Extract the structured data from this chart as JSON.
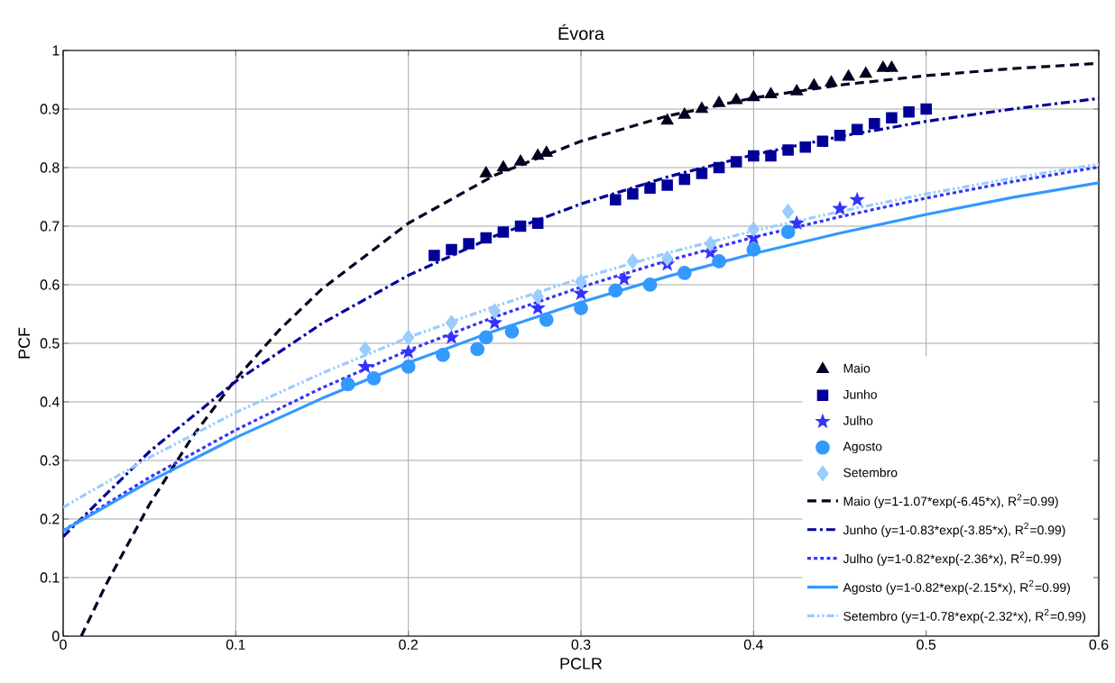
{
  "chart_data": {
    "type": "scatter",
    "title": "Évora",
    "xlabel": "PCLR",
    "ylabel": "PCF",
    "xlim": [
      0,
      0.6
    ],
    "ylim": [
      0,
      1
    ],
    "xticks": [
      0,
      0.1,
      0.2,
      0.3,
      0.4,
      0.5,
      0.6
    ],
    "yticks": [
      0,
      0.1,
      0.2,
      0.3,
      0.4,
      0.5,
      0.6,
      0.7,
      0.8,
      0.9,
      1
    ],
    "grid": true,
    "legend": "bottom right",
    "series": [
      {
        "name": "Maio",
        "color": "#000020",
        "marker": "triangle",
        "x": [
          0.245,
          0.255,
          0.265,
          0.275,
          0.28,
          0.35,
          0.36,
          0.37,
          0.38,
          0.39,
          0.4,
          0.41,
          0.425,
          0.435,
          0.445,
          0.455,
          0.465,
          0.475,
          0.48
        ],
        "values": [
          0.79,
          0.8,
          0.81,
          0.82,
          0.825,
          0.88,
          0.89,
          0.9,
          0.91,
          0.915,
          0.92,
          0.925,
          0.93,
          0.94,
          0.945,
          0.955,
          0.96,
          0.97,
          0.97
        ]
      },
      {
        "name": "Junho",
        "color": "#000099",
        "marker": "square",
        "x": [
          0.215,
          0.225,
          0.235,
          0.245,
          0.255,
          0.265,
          0.275,
          0.32,
          0.33,
          0.34,
          0.35,
          0.36,
          0.37,
          0.38,
          0.39,
          0.4,
          0.41,
          0.42,
          0.43,
          0.44,
          0.45,
          0.46,
          0.47,
          0.48,
          0.49,
          0.5
        ],
        "values": [
          0.65,
          0.66,
          0.67,
          0.68,
          0.69,
          0.7,
          0.705,
          0.745,
          0.755,
          0.765,
          0.77,
          0.78,
          0.79,
          0.8,
          0.81,
          0.82,
          0.82,
          0.83,
          0.835,
          0.845,
          0.855,
          0.865,
          0.875,
          0.885,
          0.895,
          0.9
        ]
      },
      {
        "name": "Julho",
        "color": "#3333ff",
        "marker": "star",
        "x": [
          0.175,
          0.2,
          0.225,
          0.25,
          0.275,
          0.3,
          0.325,
          0.35,
          0.375,
          0.4,
          0.425,
          0.45,
          0.46
        ],
        "values": [
          0.46,
          0.485,
          0.51,
          0.535,
          0.56,
          0.585,
          0.61,
          0.635,
          0.655,
          0.68,
          0.705,
          0.73,
          0.745
        ]
      },
      {
        "name": "Agosto",
        "color": "#3399ff",
        "marker": "circle",
        "x": [
          0.165,
          0.18,
          0.2,
          0.22,
          0.24,
          0.245,
          0.26,
          0.28,
          0.3,
          0.32,
          0.34,
          0.36,
          0.38,
          0.4,
          0.42
        ],
        "values": [
          0.43,
          0.44,
          0.46,
          0.48,
          0.49,
          0.51,
          0.52,
          0.54,
          0.56,
          0.59,
          0.6,
          0.62,
          0.64,
          0.66,
          0.69
        ]
      },
      {
        "name": "Setembro",
        "color": "#99ccff",
        "marker": "diamond",
        "x": [
          0.175,
          0.2,
          0.225,
          0.25,
          0.275,
          0.3,
          0.33,
          0.35,
          0.375,
          0.4,
          0.42
        ],
        "values": [
          0.49,
          0.51,
          0.535,
          0.555,
          0.58,
          0.605,
          0.64,
          0.645,
          0.67,
          0.695,
          0.725
        ]
      },
      {
        "type": "line",
        "name": "Maio (y=1-1.07*exp(-6.45*x), R$^{2}$=0.99)",
        "color": "#000020",
        "line_style": "dashed",
        "x": [
          0.0105,
          0.025,
          0.05,
          0.075,
          0.1,
          0.125,
          0.15,
          0.2,
          0.25,
          0.3,
          0.35,
          0.4,
          0.45,
          0.5,
          0.55,
          0.6
        ],
        "values": [
          0,
          0.089,
          0.225,
          0.341,
          0.439,
          0.522,
          0.593,
          0.705,
          0.787,
          0.845,
          0.888,
          0.919,
          0.941,
          0.957,
          0.969,
          0.978
        ]
      },
      {
        "type": "line",
        "name": "Junho (y=1-0.83*exp(-3.85*x), R$^{2}$=0.99)",
        "color": "#000099",
        "line_style": "dashdot",
        "x": [
          0,
          0.05,
          0.1,
          0.15,
          0.2,
          0.25,
          0.3,
          0.35,
          0.4,
          0.45,
          0.5,
          0.55,
          0.6
        ],
        "values": [
          0.17,
          0.315,
          0.435,
          0.534,
          0.616,
          0.683,
          0.738,
          0.784,
          0.822,
          0.853,
          0.879,
          0.9,
          0.918
        ]
      },
      {
        "type": "line",
        "name": "Julho (y=1-0.82*exp(-2.36*x), R$^{2}$=0.99)",
        "color": "#3333ff",
        "line_style": "dotted",
        "x": [
          0,
          0.05,
          0.1,
          0.15,
          0.2,
          0.25,
          0.3,
          0.35,
          0.4,
          0.45,
          0.5,
          0.55,
          0.6
        ],
        "values": [
          0.18,
          0.271,
          0.352,
          0.424,
          0.488,
          0.545,
          0.596,
          0.641,
          0.681,
          0.716,
          0.748,
          0.776,
          0.801
        ]
      },
      {
        "type": "line",
        "name": "Agosto (y=1-0.82*exp(-2.15*x), R$^{2}$=0.99)",
        "color": "#3399ff",
        "line_style": "solid",
        "x": [
          0,
          0.05,
          0.1,
          0.15,
          0.2,
          0.25,
          0.3,
          0.35,
          0.4,
          0.45,
          0.5,
          0.55,
          0.6
        ],
        "values": [
          0.18,
          0.264,
          0.339,
          0.406,
          0.467,
          0.521,
          0.57,
          0.614,
          0.653,
          0.688,
          0.72,
          0.749,
          0.774
        ]
      },
      {
        "type": "line",
        "name": "Setembro (y=1-0.78*exp(-2.32*x), R$^{2}$=0.99)",
        "color": "#99ccff",
        "line_style": "dashdotdot",
        "x": [
          0,
          0.05,
          0.1,
          0.15,
          0.2,
          0.25,
          0.3,
          0.35,
          0.4,
          0.45,
          0.5,
          0.55,
          0.6
        ],
        "values": [
          0.22,
          0.305,
          0.382,
          0.449,
          0.51,
          0.563,
          0.611,
          0.654,
          0.692,
          0.725,
          0.755,
          0.782,
          0.806
        ]
      }
    ]
  }
}
